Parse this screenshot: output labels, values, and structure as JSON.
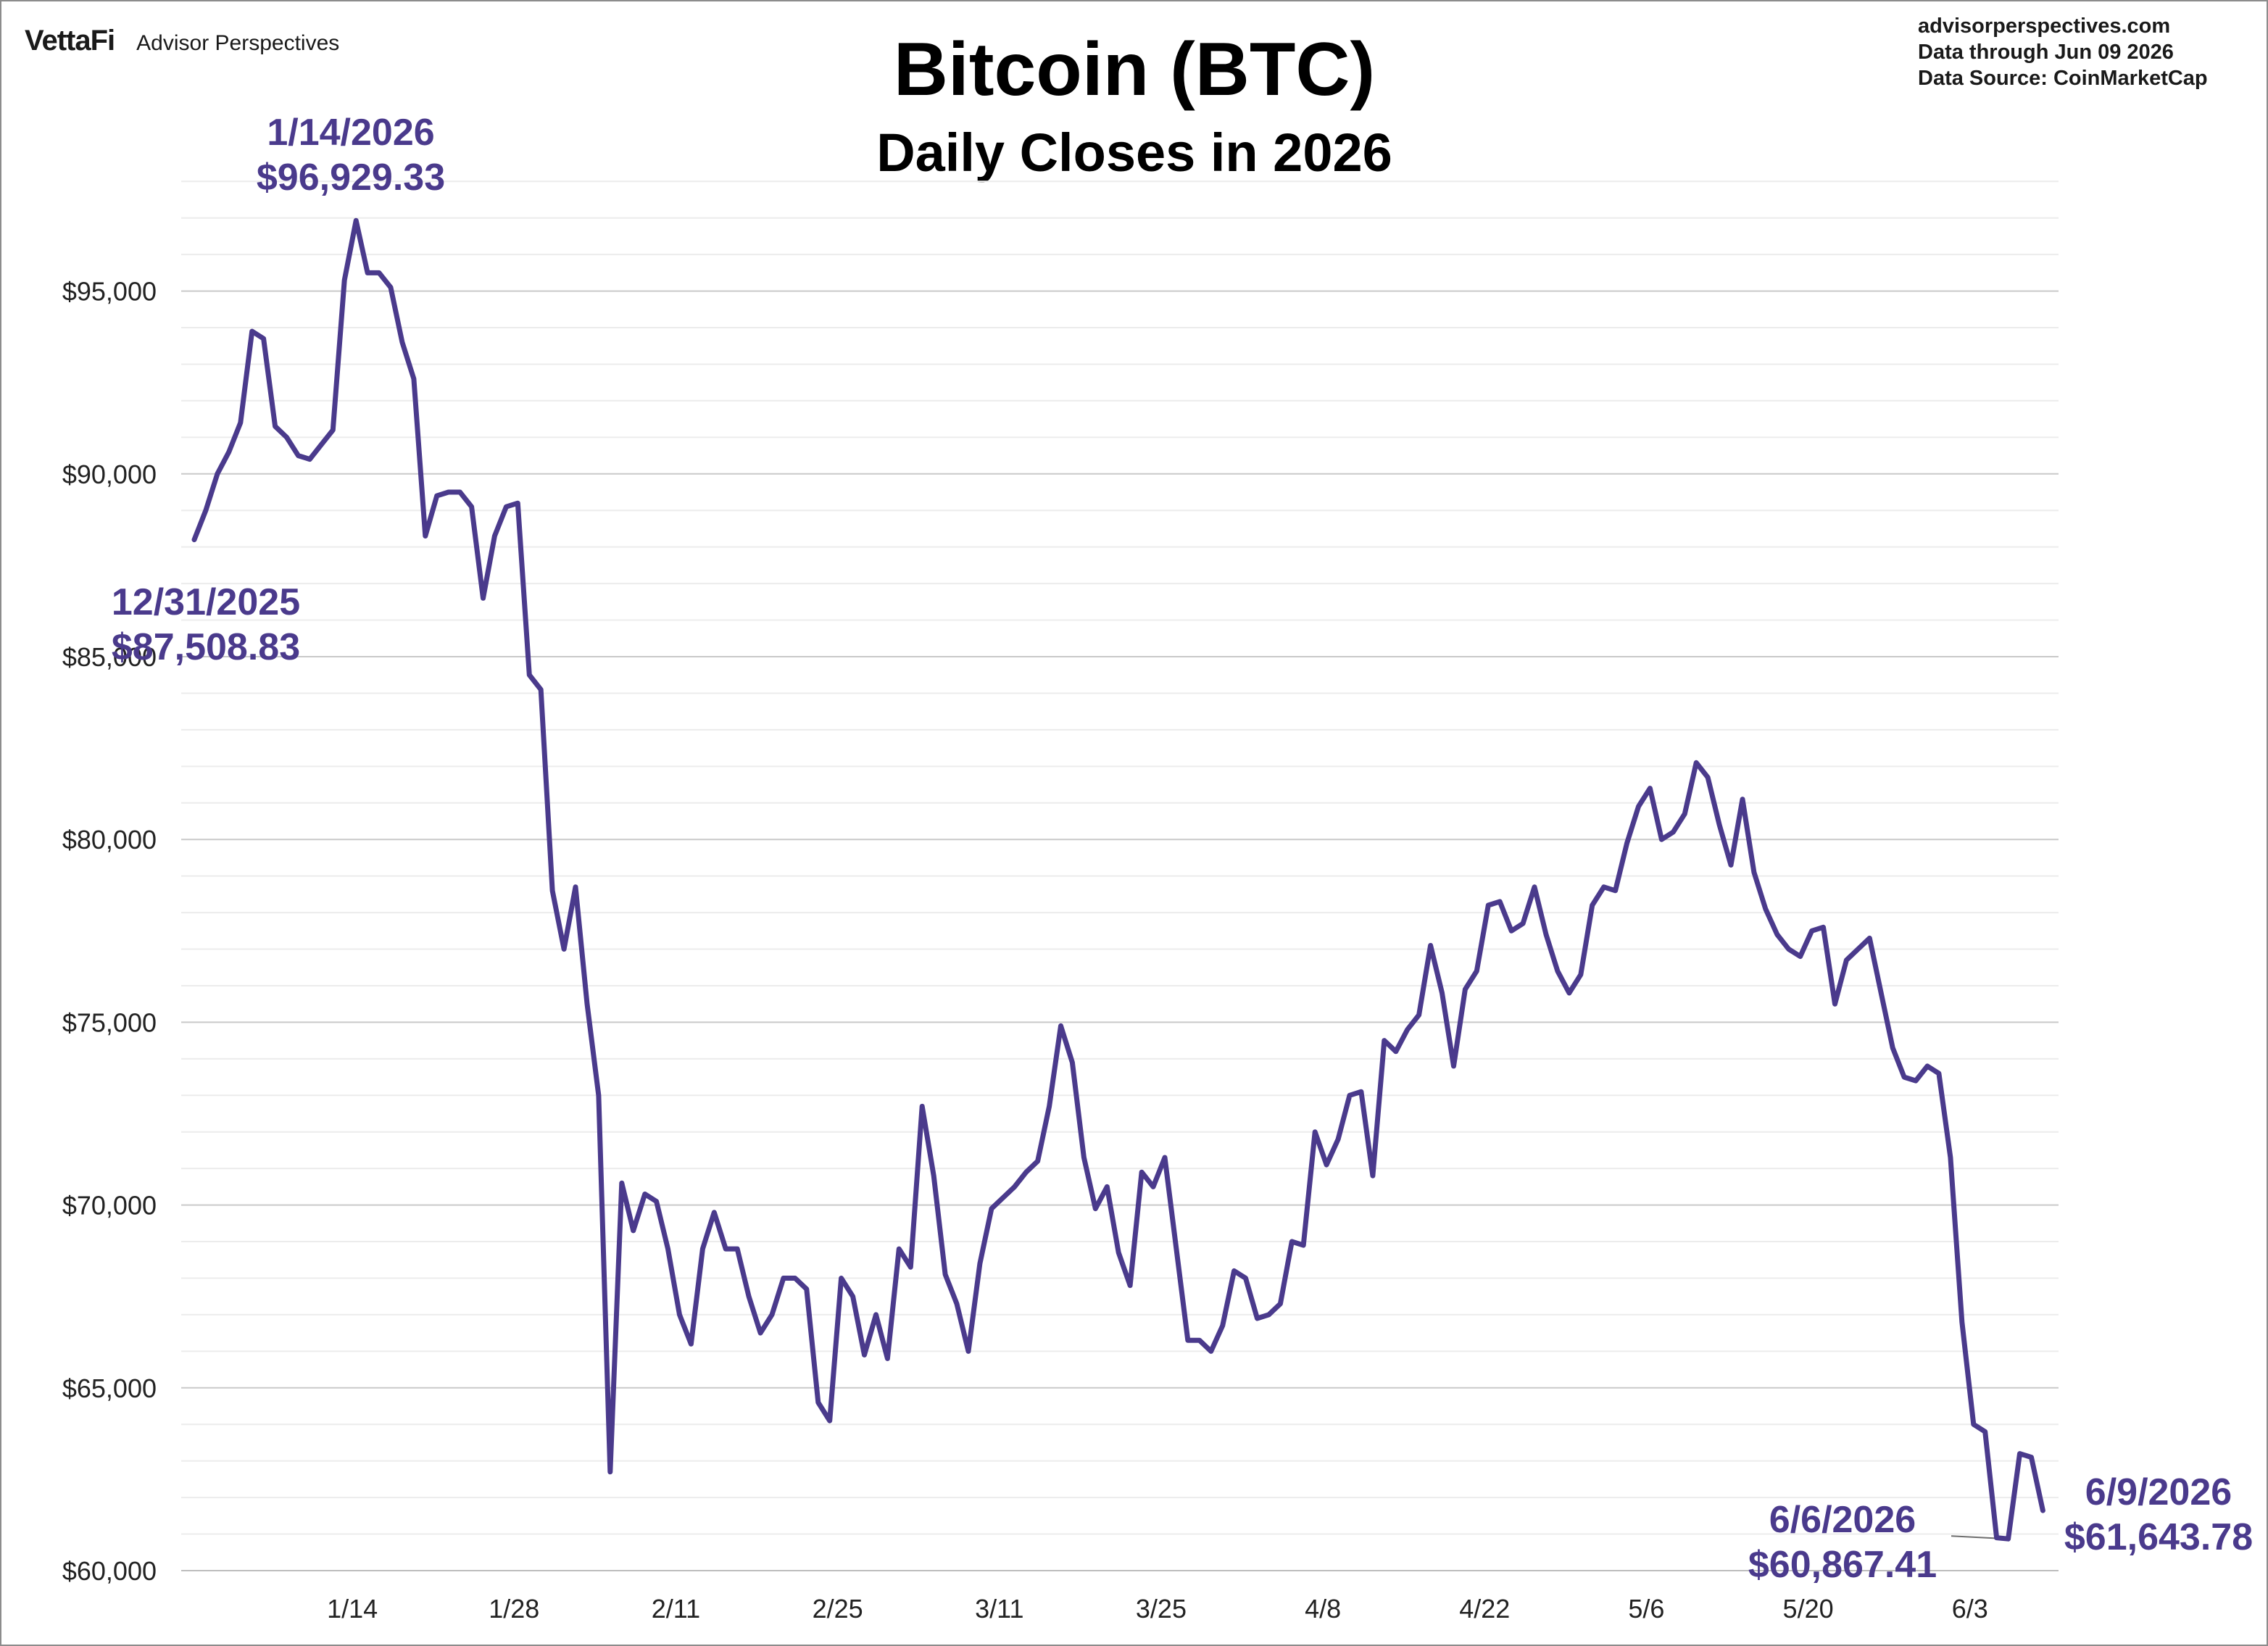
{
  "header": {
    "logo_text": "VettaFi",
    "brand_text": "Advisor Perspectives",
    "title": "Bitcoin (BTC)",
    "subtitle": "Daily Closes in 2026",
    "source_lines": [
      "advisorperspectives.com",
      "Data through  Jun 09 2026",
      "Data Source:  CoinMarketCap"
    ]
  },
  "chart_data": {
    "type": "line",
    "title": "Bitcoin (BTC)",
    "subtitle": "Daily Closes in 2026",
    "xlabel": "",
    "ylabel": "",
    "ylim": [
      60000,
      98000
    ],
    "y_ticks": [
      60000,
      65000,
      70000,
      75000,
      80000,
      85000,
      90000,
      95000
    ],
    "y_tick_labels": [
      "$60,000",
      "$65,000",
      "$70,000",
      "$75,000",
      "$80,000",
      "$85,000",
      "$90,000",
      "$95,000"
    ],
    "minor_gridlines": true,
    "x_tick_labels": [
      "1/14",
      "1/28",
      "2/11",
      "2/25",
      "3/11",
      "3/25",
      "4/8",
      "4/22",
      "5/6",
      "5/20",
      "6/3"
    ],
    "x_tick_days": [
      14,
      28,
      42,
      56,
      70,
      84,
      98,
      112,
      126,
      140,
      154
    ],
    "x_start_label": "12/31/2025",
    "x_end_label": "6/9/2026",
    "line_color": "#4a3a8c",
    "series": [
      {
        "values": [
          88200,
          89000,
          90000,
          90600,
          91400,
          93900,
          93700,
          91300,
          91000,
          90500,
          90400,
          90800,
          91200,
          95300,
          96929.33,
          95500,
          95500,
          95100,
          93600,
          92600,
          88300,
          89400,
          89500,
          89500,
          89100,
          86600,
          88300,
          89100,
          89200,
          84500,
          84100,
          78600,
          77000,
          78700,
          75500,
          73000,
          62700,
          70600,
          69300,
          70300,
          70100,
          68800,
          67000,
          66200,
          68800,
          69800,
          68800,
          68800,
          67500,
          66500,
          67000,
          68000,
          68000,
          67700,
          64600,
          64100,
          68000,
          67500,
          65900,
          67000,
          65800,
          68800,
          68300,
          72700,
          70800,
          68100,
          67300,
          66000,
          68400,
          69900,
          70200,
          70500,
          70900,
          71200,
          72700,
          74900,
          73900,
          71300,
          69900,
          70500,
          68700,
          67800,
          70900,
          70500,
          71300,
          68800,
          66300,
          66300,
          66000,
          66700,
          68200,
          68000,
          66900,
          67000,
          67300,
          69000,
          68900,
          72000,
          71100,
          71800,
          73000,
          73100,
          70800,
          74500,
          74200,
          74800,
          75200,
          77100,
          75800,
          73800,
          75900,
          76400,
          78200,
          78300,
          77500,
          77700,
          78700,
          77400,
          76400,
          75800,
          76300,
          78200,
          78700,
          78600,
          79900,
          80900,
          81400,
          80000,
          80200,
          80700,
          82100,
          81700,
          80400,
          79300,
          81100,
          79100,
          78100,
          77400,
          77000,
          76800,
          77500,
          77600,
          75500,
          76700,
          77000,
          77300,
          75800,
          74300,
          73500,
          73400,
          73800,
          73600,
          71300,
          66800,
          64000,
          63800,
          60900,
          60867.41,
          63200,
          63100,
          61643.78
        ]
      }
    ],
    "annotations": [
      {
        "date": "1/14/2026",
        "value": "$96,929.33"
      },
      {
        "date": "12/31/2025",
        "value": "$87,508.83"
      },
      {
        "date": "6/6/2026",
        "value": "$60,867.41"
      },
      {
        "date": "6/9/2026",
        "value": "$61,643.78"
      }
    ]
  }
}
